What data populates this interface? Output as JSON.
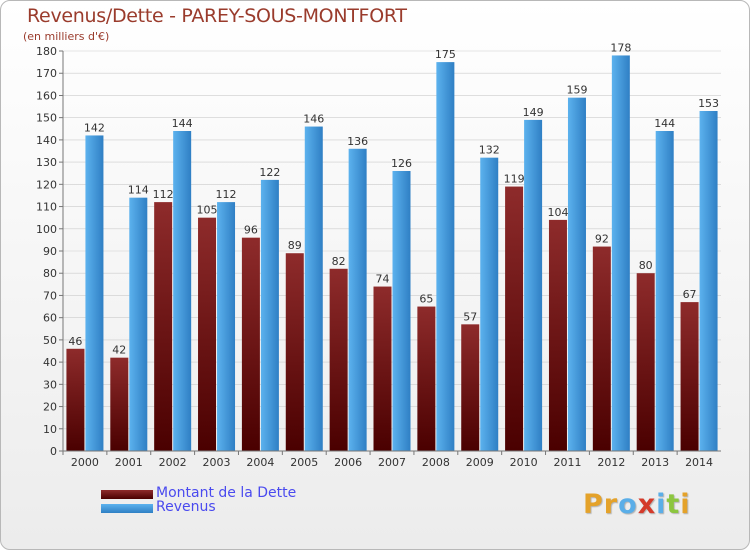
{
  "header": {
    "title": "Revenus/Dette - PAREY-SOUS-MONTFORT",
    "subtitle": "(en milliers d'€)"
  },
  "colors": {
    "dette_top": "#8e2b2b",
    "dette_bottom": "#4a0000",
    "revenus_top": "#5cb2ee",
    "revenus_bottom": "#2f7fc4",
    "axis": "#777777",
    "grid": "#cccccc",
    "text": "#333333"
  },
  "chart_data": {
    "type": "bar",
    "title": "Revenus/Dette - PAREY-SOUS-MONTFORT",
    "subtitle": "(en milliers d'€)",
    "categories": [
      "2000",
      "2001",
      "2002",
      "2003",
      "2004",
      "2005",
      "2006",
      "2007",
      "2008",
      "2009",
      "2010",
      "2011",
      "2012",
      "2013",
      "2014"
    ],
    "series": [
      {
        "name": "Montant de la Dette",
        "values": [
          46,
          42,
          112,
          105,
          96,
          89,
          82,
          74,
          65,
          57,
          119,
          104,
          92,
          80,
          67
        ]
      },
      {
        "name": "Revenus",
        "values": [
          142,
          114,
          144,
          112,
          122,
          146,
          136,
          126,
          175,
          132,
          149,
          159,
          178,
          144,
          153
        ]
      }
    ],
    "ylim": [
      0,
      180
    ],
    "ytick_step": 10,
    "grid": true,
    "legend_position": "bottom-left"
  },
  "legend": {
    "dette_label": "Montant de la Dette",
    "revenus_label": "Revenus"
  },
  "logo": {
    "letters": [
      "P",
      "r",
      "o",
      "x",
      "i",
      "t",
      "i"
    ],
    "colors": [
      "#e4a22a",
      "#e4a22a",
      "#5aaee8",
      "#d43a2a",
      "#5aaee8",
      "#8cc63f",
      "#e4a22a"
    ]
  }
}
